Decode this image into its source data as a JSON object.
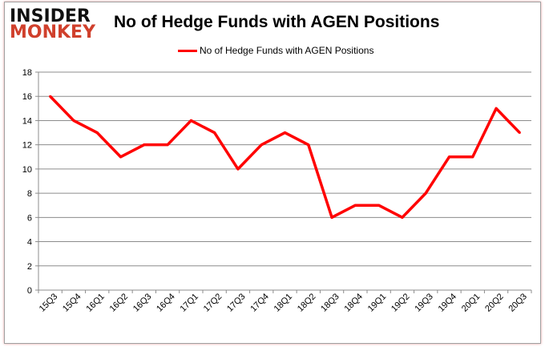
{
  "logo": {
    "line1": "INSIDER",
    "line2": "MONKEY"
  },
  "chart_data": {
    "type": "line",
    "title": "No of Hedge Funds with AGEN Positions",
    "xlabel": "",
    "ylabel": "",
    "categories": [
      "15Q3",
      "15Q4",
      "16Q1",
      "16Q2",
      "16Q3",
      "16Q4",
      "17Q1",
      "17Q2",
      "17Q3",
      "17Q4",
      "18Q1",
      "18Q2",
      "18Q3",
      "18Q4",
      "19Q1",
      "19Q2",
      "19Q3",
      "19Q4",
      "20Q1",
      "20Q2",
      "20Q3"
    ],
    "series": [
      {
        "name": "No of Hedge Funds with AGEN Positions",
        "values": [
          16,
          14,
          13,
          11,
          12,
          12,
          14,
          13,
          10,
          12,
          13,
          12,
          6,
          7,
          7,
          6,
          8,
          11,
          11,
          15,
          13
        ],
        "color": "#ff0000"
      }
    ],
    "ylim": [
      0,
      18
    ],
    "yticks": [
      0,
      2,
      4,
      6,
      8,
      10,
      12,
      14,
      16,
      18
    ],
    "grid": true,
    "legend": "top"
  }
}
